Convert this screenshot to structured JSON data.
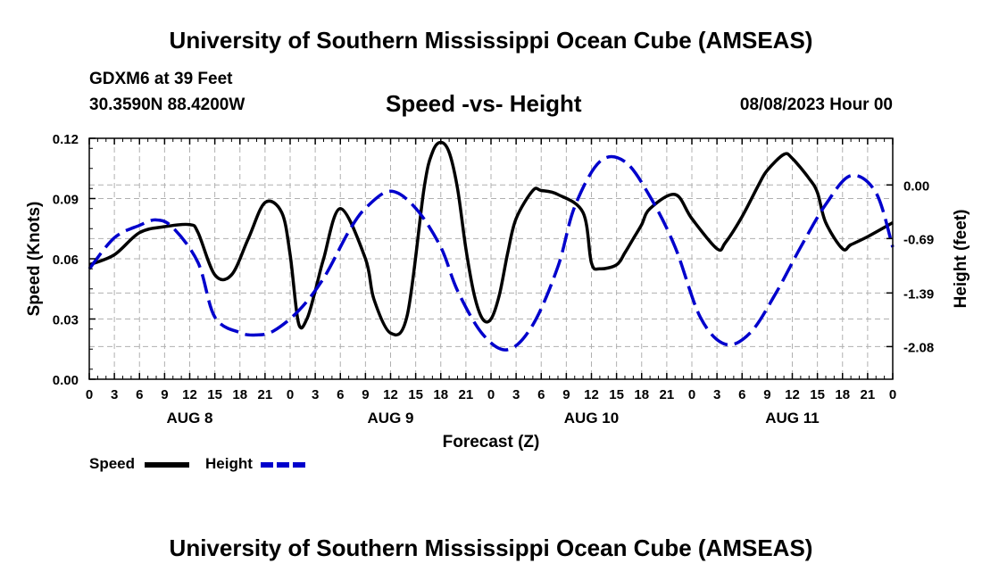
{
  "header": {
    "title": "University of Southern Mississippi Ocean Cube (AMSEAS)",
    "station": "GDXM6 at 39 Feet",
    "coords": "30.3590N  88.4200W",
    "subtitle": "Speed -vs- Height",
    "datetime": "08/08/2023 Hour 00"
  },
  "footer": {
    "title": "University of Southern Mississippi Ocean Cube (AMSEAS)"
  },
  "legend": {
    "speed_label": "Speed",
    "height_label": "Height"
  },
  "colors": {
    "speed": "#000000",
    "height": "#0000cc",
    "grid": "#b0b0b0"
  },
  "chart_data": {
    "type": "line",
    "title": "Speed -vs- Height",
    "xlabel": "Forecast (Z)",
    "ylabel": "Speed (Knots)",
    "y2label": "Height (feet)",
    "xlim": [
      0,
      96
    ],
    "ylim": [
      0,
      0.12
    ],
    "y2lim": [
      -2.5,
      0.6
    ],
    "x_ticks": [
      0,
      3,
      6,
      9,
      12,
      15,
      18,
      21,
      24,
      27,
      30,
      33,
      36,
      39,
      42,
      45,
      48,
      51,
      54,
      57,
      60,
      63,
      66,
      69,
      72,
      75,
      78,
      81,
      84,
      87,
      90,
      93,
      96
    ],
    "x_tick_labels": [
      "0",
      "3",
      "6",
      "9",
      "12",
      "15",
      "18",
      "21",
      "0",
      "3",
      "6",
      "9",
      "12",
      "15",
      "18",
      "21",
      "0",
      "3",
      "6",
      "9",
      "12",
      "15",
      "18",
      "21",
      "0",
      "3",
      "6",
      "9",
      "12",
      "15",
      "18",
      "21",
      "0"
    ],
    "day_labels": [
      {
        "x": 12,
        "label": "AUG 8"
      },
      {
        "x": 36,
        "label": "AUG 9"
      },
      {
        "x": 60,
        "label": "AUG 10"
      },
      {
        "x": 84,
        "label": "AUG 11"
      }
    ],
    "y_ticks": [
      0,
      0.03,
      0.06,
      0.09,
      0.12
    ],
    "y_tick_labels": [
      "0.00",
      "0.03",
      "0.06",
      "0.09",
      "0.12"
    ],
    "y2_ticks": [
      0.0,
      -0.69,
      -1.39,
      -2.08
    ],
    "y2_tick_labels": [
      "0.00",
      "-0.69",
      "-1.39",
      "-2.08"
    ],
    "grid": true,
    "series": [
      {
        "name": "Speed",
        "axis": "left",
        "style": "solid",
        "x": [
          0,
          3,
          6,
          9,
          12,
          13,
          15,
          17,
          19,
          21,
          23,
          24,
          25,
          26,
          27,
          28,
          30,
          33,
          34,
          36,
          38,
          40,
          41,
          42,
          43,
          44,
          45,
          46,
          47,
          48,
          49,
          50,
          51,
          53,
          54,
          56,
          59,
          60,
          61,
          63,
          64,
          65,
          66,
          67,
          70,
          72,
          75,
          76,
          78,
          80,
          81,
          83,
          84,
          86,
          87,
          88,
          90,
          91,
          93,
          96
        ],
        "values": [
          0.057,
          0.062,
          0.073,
          0.076,
          0.077,
          0.073,
          0.052,
          0.052,
          0.07,
          0.088,
          0.083,
          0.062,
          0.028,
          0.03,
          0.044,
          0.06,
          0.085,
          0.06,
          0.04,
          0.023,
          0.032,
          0.095,
          0.113,
          0.118,
          0.113,
          0.095,
          0.065,
          0.042,
          0.03,
          0.03,
          0.042,
          0.063,
          0.08,
          0.094,
          0.094,
          0.092,
          0.083,
          0.058,
          0.055,
          0.057,
          0.063,
          0.07,
          0.077,
          0.085,
          0.092,
          0.08,
          0.065,
          0.068,
          0.081,
          0.097,
          0.104,
          0.112,
          0.11,
          0.1,
          0.093,
          0.078,
          0.065,
          0.067,
          0.071,
          0.078
        ]
      },
      {
        "name": "Height",
        "axis": "right",
        "style": "dashed",
        "x": [
          0,
          3,
          6,
          8,
          10,
          13,
          15,
          18,
          20,
          22,
          25,
          28,
          31,
          33,
          36,
          39,
          42,
          44,
          47,
          50,
          53,
          56,
          58,
          61,
          64,
          67,
          70,
          73,
          76,
          79,
          82,
          85,
          88,
          91,
          94,
          96
        ],
        "values": [
          -1.08,
          -0.68,
          -0.52,
          -0.45,
          -0.55,
          -1.0,
          -1.7,
          -1.9,
          -1.93,
          -1.88,
          -1.62,
          -1.2,
          -0.6,
          -0.3,
          -0.08,
          -0.3,
          -0.8,
          -1.36,
          -1.92,
          -2.12,
          -1.8,
          -1.05,
          -0.28,
          0.3,
          0.3,
          -0.15,
          -0.8,
          -1.7,
          -2.05,
          -1.9,
          -1.4,
          -0.8,
          -0.25,
          0.12,
          -0.1,
          -0.8
        ]
      }
    ]
  }
}
